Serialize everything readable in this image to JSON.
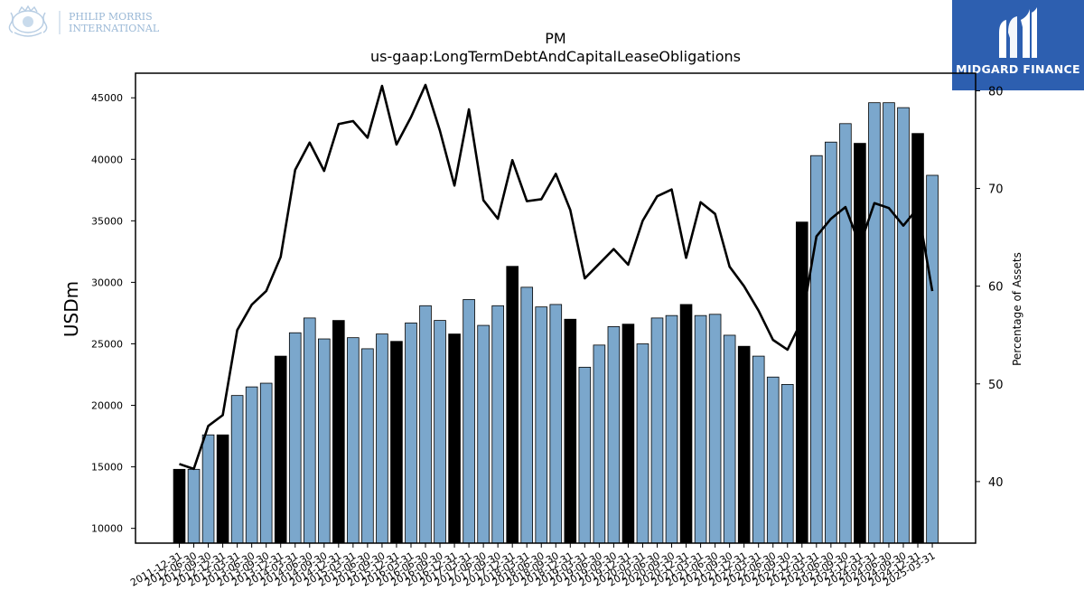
{
  "brand": {
    "company_line1": "PHILIP MORRIS",
    "company_line2": "INTERNATIONAL",
    "right_logo_text": "MIDGARD FINANCE"
  },
  "colors": {
    "bar_default": "#7ba7cc",
    "bar_highlight": "#000000",
    "line": "#000000",
    "logo_blue": "#2d5fb0"
  },
  "chart_data": {
    "type": "bar",
    "title": "PM",
    "subtitle": "us-gaap:LongTermDebtAndCapitalLeaseObligations",
    "ylabel": "USDm",
    "y2label": "Percentage of Assets",
    "ylim": [
      8800,
      47000
    ],
    "y2lim": [
      33.7,
      81.8
    ],
    "yticks": [
      10000,
      15000,
      20000,
      25000,
      30000,
      35000,
      40000,
      45000
    ],
    "y2ticks": [
      40,
      50,
      60,
      70,
      80
    ],
    "grid": false,
    "categories": [
      "2011-12-31",
      "2012-06-30",
      "2012-09-30",
      "2012-12-31",
      "2013-03-31",
      "2013-06-30",
      "2013-09-30",
      "2013-12-31",
      "2014-03-31",
      "2014-06-30",
      "2014-09-30",
      "2014-12-31",
      "2015-03-31",
      "2015-06-30",
      "2015-09-30",
      "2015-12-31",
      "2016-03-31",
      "2016-06-30",
      "2016-09-30",
      "2016-12-31",
      "2017-03-31",
      "2017-06-30",
      "2017-09-30",
      "2017-12-31",
      "2018-03-31",
      "2018-06-30",
      "2018-09-30",
      "2018-12-31",
      "2019-03-31",
      "2019-06-30",
      "2019-09-30",
      "2019-12-31",
      "2020-03-31",
      "2020-06-30",
      "2020-09-30",
      "2020-12-31",
      "2021-03-31",
      "2021-06-30",
      "2021-09-30",
      "2021-12-31",
      "2022-03-31",
      "2022-06-30",
      "2022-09-30",
      "2022-12-31",
      "2023-03-31",
      "2023-06-30",
      "2023-09-30",
      "2023-12-31",
      "2024-03-31",
      "2024-06-30",
      "2024-09-30",
      "2024-12-31",
      "2025-03-31"
    ],
    "series": [
      {
        "values": [
          14800,
          14800,
          17600,
          17600,
          20800,
          21500,
          21800,
          24000,
          25900,
          27100,
          25400,
          26900,
          25500,
          24600,
          25800,
          25200,
          26700,
          28100,
          26900,
          25800,
          28600,
          26500,
          28100,
          31300,
          29600,
          28000,
          28200,
          27000,
          23100,
          24900,
          26400,
          26600,
          25000,
          27100,
          27300,
          28200,
          27300,
          27400,
          25700,
          24800,
          24000,
          22300,
          21700,
          34900,
          40300,
          41400,
          42900,
          41300,
          44600,
          44600,
          44200,
          42100,
          38700
        ],
        "highlight": [
          true,
          false,
          false,
          true,
          false,
          false,
          false,
          true,
          false,
          false,
          false,
          true,
          false,
          false,
          false,
          true,
          false,
          false,
          false,
          true,
          false,
          false,
          false,
          true,
          false,
          false,
          false,
          true,
          false,
          false,
          false,
          true,
          false,
          false,
          false,
          true,
          false,
          false,
          false,
          true,
          false,
          false,
          false,
          true,
          false,
          false,
          false,
          true,
          false,
          false,
          false,
          true,
          false
        ]
      },
      {
        "axis": "right",
        "values": [
          41.8,
          41.3,
          45.7,
          46.8,
          55.5,
          58.1,
          59.5,
          63.0,
          71.9,
          74.7,
          71.8,
          76.6,
          76.9,
          75.2,
          80.5,
          74.5,
          77.3,
          80.6,
          75.9,
          70.3,
          78.1,
          68.8,
          66.9,
          72.9,
          68.7,
          68.9,
          71.5,
          67.8,
          60.8,
          62.3,
          63.8,
          62.2,
          66.7,
          69.2,
          69.9,
          62.9,
          68.6,
          67.4,
          62.0,
          60.0,
          57.5,
          54.5,
          53.5,
          56.5,
          65.1,
          66.9,
          68.1,
          64.2,
          68.5,
          68.0,
          66.2,
          68.0,
          59.5
        ]
      }
    ]
  }
}
